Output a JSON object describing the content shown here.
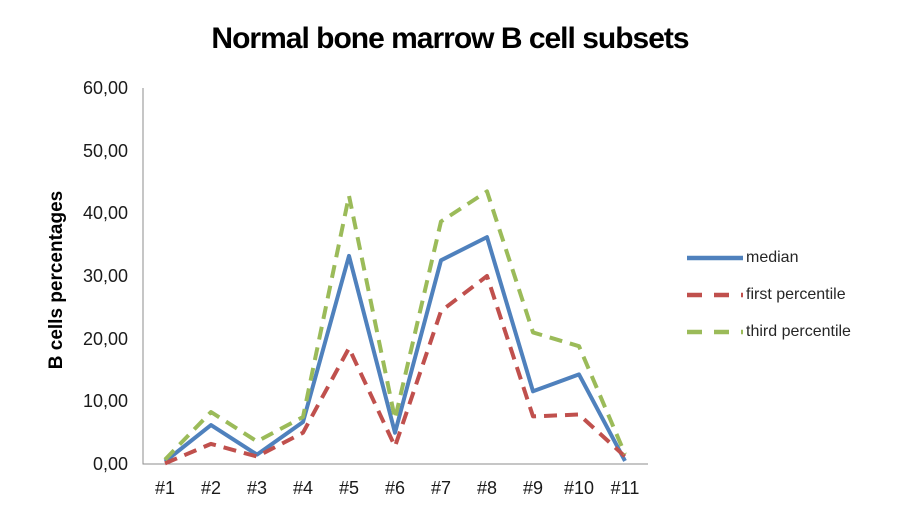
{
  "chart_data": {
    "type": "line",
    "title": "Normal bone marrow B cell subsets",
    "xlabel": "",
    "ylabel": "B cells percentages",
    "ylim": [
      0,
      60
    ],
    "grid": false,
    "legend_position": "right",
    "y_tick_labels": [
      "60,00",
      "50,00",
      "40,00",
      "30,00",
      "20,00",
      "10,00",
      "0,00"
    ],
    "categories": [
      "#1",
      "#2",
      "#3",
      "#4",
      "#5",
      "#6",
      "#7",
      "#8",
      "#9",
      "#10",
      "#11"
    ],
    "series": [
      {
        "name": "median",
        "color": "#4F81BD",
        "style": "solid",
        "values": [
          0.4,
          6.2,
          1.5,
          6.7,
          33.2,
          5.0,
          32.5,
          36.2,
          11.6,
          14.3,
          0.5
        ]
      },
      {
        "name": "first percentile",
        "color": "#C0504D",
        "style": "dashed",
        "values": [
          0.1,
          3.2,
          1.2,
          5.0,
          18.5,
          2.8,
          24.4,
          30.0,
          7.6,
          7.9,
          1.2
        ]
      },
      {
        "name": "third percentile",
        "color": "#9BBB59",
        "style": "dashed",
        "values": [
          0.7,
          8.3,
          3.6,
          7.5,
          42.8,
          7.2,
          38.7,
          43.5,
          21.0,
          18.8,
          1.6
        ]
      }
    ],
    "axis_color": "#8E8E8E",
    "text_color": "#1a1a1a"
  }
}
